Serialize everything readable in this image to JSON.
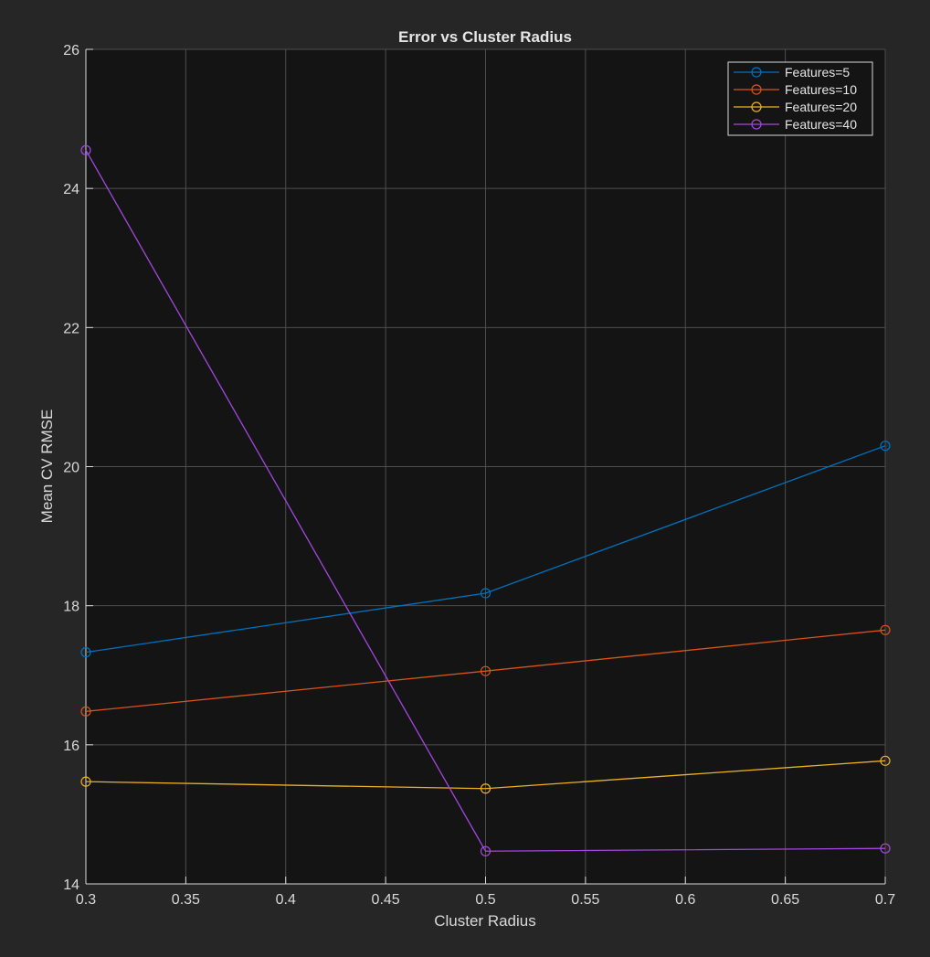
{
  "chart_data": {
    "type": "line",
    "title": "Error vs Cluster Radius",
    "xlabel": "Cluster Radius",
    "ylabel": "Mean CV RMSE",
    "x": [
      0.3,
      0.5,
      0.7
    ],
    "xlim": [
      0.3,
      0.7
    ],
    "ylim": [
      14,
      26
    ],
    "xticks": [
      "0.3",
      "0.35",
      "0.4",
      "0.45",
      "0.5",
      "0.55",
      "0.6",
      "0.65",
      "0.7"
    ],
    "yticks": [
      "14",
      "16",
      "18",
      "20",
      "22",
      "24",
      "26"
    ],
    "grid": true,
    "legend_position": "top-right",
    "series": [
      {
        "name": "Features=5",
        "color": "#0072BD",
        "values": [
          17.33,
          18.18,
          20.3
        ]
      },
      {
        "name": "Features=10",
        "color": "#D95319",
        "values": [
          16.48,
          17.06,
          17.65
        ]
      },
      {
        "name": "Features=20",
        "color": "#EDB120",
        "values": [
          15.47,
          15.37,
          15.77
        ]
      },
      {
        "name": "Features=40",
        "color": "#A347E0",
        "values": [
          24.55,
          14.47,
          14.51
        ]
      }
    ],
    "colors": {
      "figure_background": "#262626",
      "axes_background": "#141414",
      "axis_text": "#d9d9d9",
      "grid": "#4d4d4d"
    }
  }
}
